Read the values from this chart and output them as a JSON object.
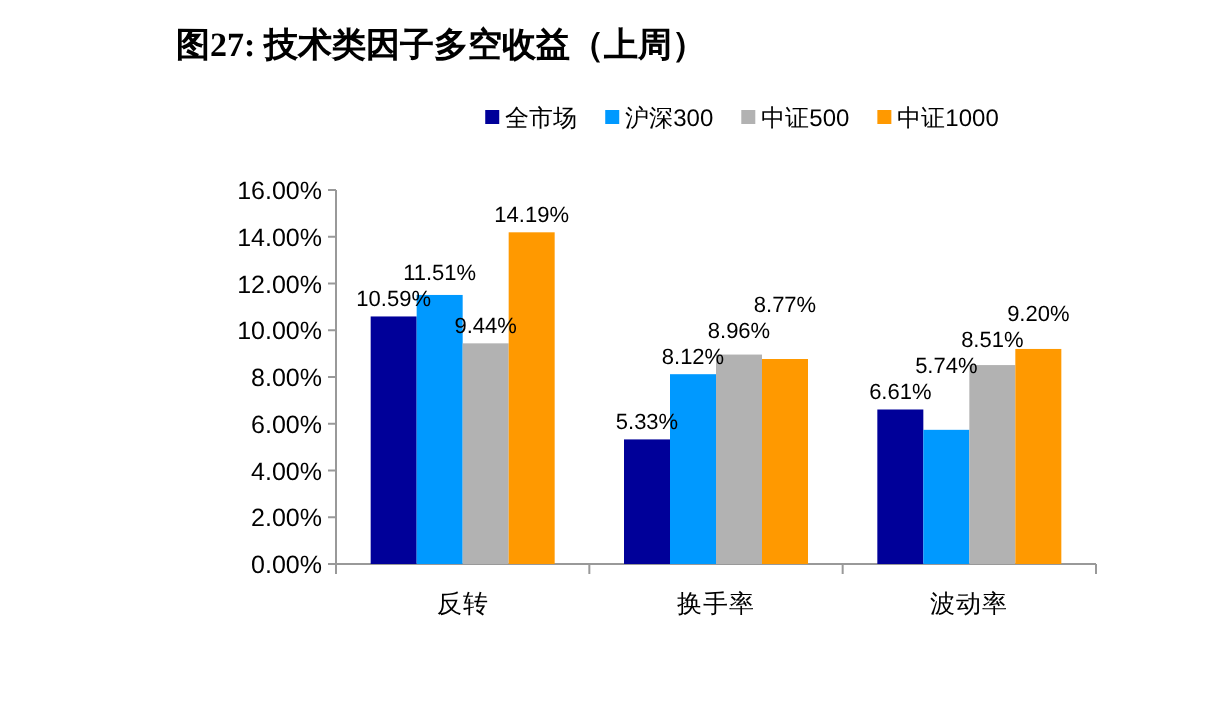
{
  "chart_data": {
    "type": "bar",
    "title": "图27:  技术类因子多空收益（上周）",
    "categories": [
      "反转",
      "换手率",
      "波动率"
    ],
    "series": [
      {
        "name": "全市场",
        "color": "#000099",
        "values": [
          10.59,
          5.33,
          6.61
        ],
        "value_labels": [
          "10.59%",
          "5.33%",
          "6.61%"
        ]
      },
      {
        "name": "沪深300",
        "color": "#0099ff",
        "values": [
          11.51,
          8.12,
          5.74
        ],
        "value_labels": [
          "11.51%",
          "8.12%",
          "5.74%"
        ]
      },
      {
        "name": "中证500",
        "color": "#b2b2b2",
        "values": [
          9.44,
          8.96,
          8.51
        ],
        "value_labels": [
          "9.44%",
          "8.96%",
          "8.51%"
        ]
      },
      {
        "name": "中证1000",
        "color": "#ff9900",
        "values": [
          14.19,
          8.77,
          9.2
        ],
        "value_labels": [
          "14.19%",
          "8.77%",
          "9.20%"
        ]
      }
    ],
    "ylim": [
      0,
      16
    ],
    "yticks": [
      {
        "value": 0,
        "label": "0.00%"
      },
      {
        "value": 2,
        "label": "2.00%"
      },
      {
        "value": 4,
        "label": "4.00%"
      },
      {
        "value": 6,
        "label": "6.00%"
      },
      {
        "value": 8,
        "label": "8.00%"
      },
      {
        "value": 10,
        "label": "10.00%"
      },
      {
        "value": 12,
        "label": "12.00%"
      },
      {
        "value": 14,
        "label": "14.00%"
      },
      {
        "value": 16,
        "label": "16.00%"
      }
    ],
    "grid": false,
    "legend": "top"
  }
}
